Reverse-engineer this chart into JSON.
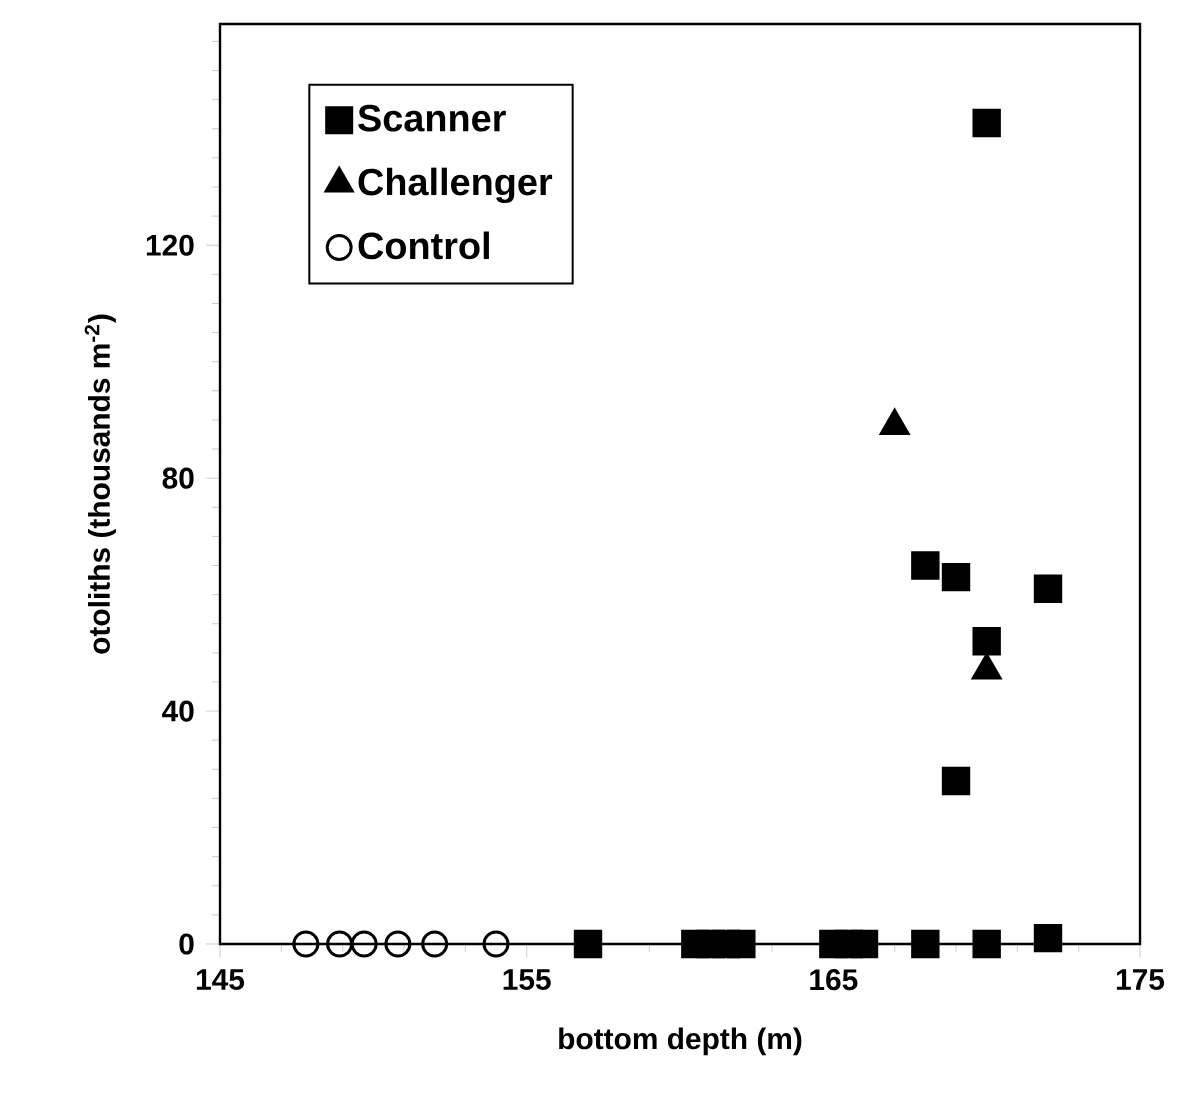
{
  "chart_data": {
    "type": "scatter",
    "xlabel": "bottom depth (m)",
    "ylabel": "otoliths (thousands m$^{-2}$)",
    "xlim": [
      145,
      175
    ],
    "xticks": [
      145,
      155,
      165,
      175
    ],
    "ylim": [
      0,
      158
    ],
    "yticks": [
      0,
      40,
      80,
      120
    ],
    "grid": false,
    "legend": "top left",
    "series": [
      {
        "name": "Scanner",
        "color": "#000000",
        "marker": "square",
        "x": [
          170,
          168,
          169,
          172,
          170,
          169,
          157,
          160.5,
          161,
          161.5,
          162,
          165,
          165.5,
          166,
          168,
          170,
          172
        ],
        "values": [
          141,
          65,
          63,
          61,
          52,
          28,
          0,
          0,
          0,
          0,
          0,
          0,
          0,
          0,
          0,
          0,
          1
        ]
      },
      {
        "name": "Challenger",
        "color": "#000000",
        "marker": "triangle",
        "x": [
          167,
          170
        ],
        "values": [
          89,
          47
        ]
      },
      {
        "name": "Control",
        "color": "#000000",
        "marker": "circle",
        "x": [
          147.8,
          148.9,
          149.7,
          150.8,
          152,
          154
        ],
        "values": [
          0,
          0,
          0,
          0,
          0,
          0
        ]
      }
    ]
  }
}
